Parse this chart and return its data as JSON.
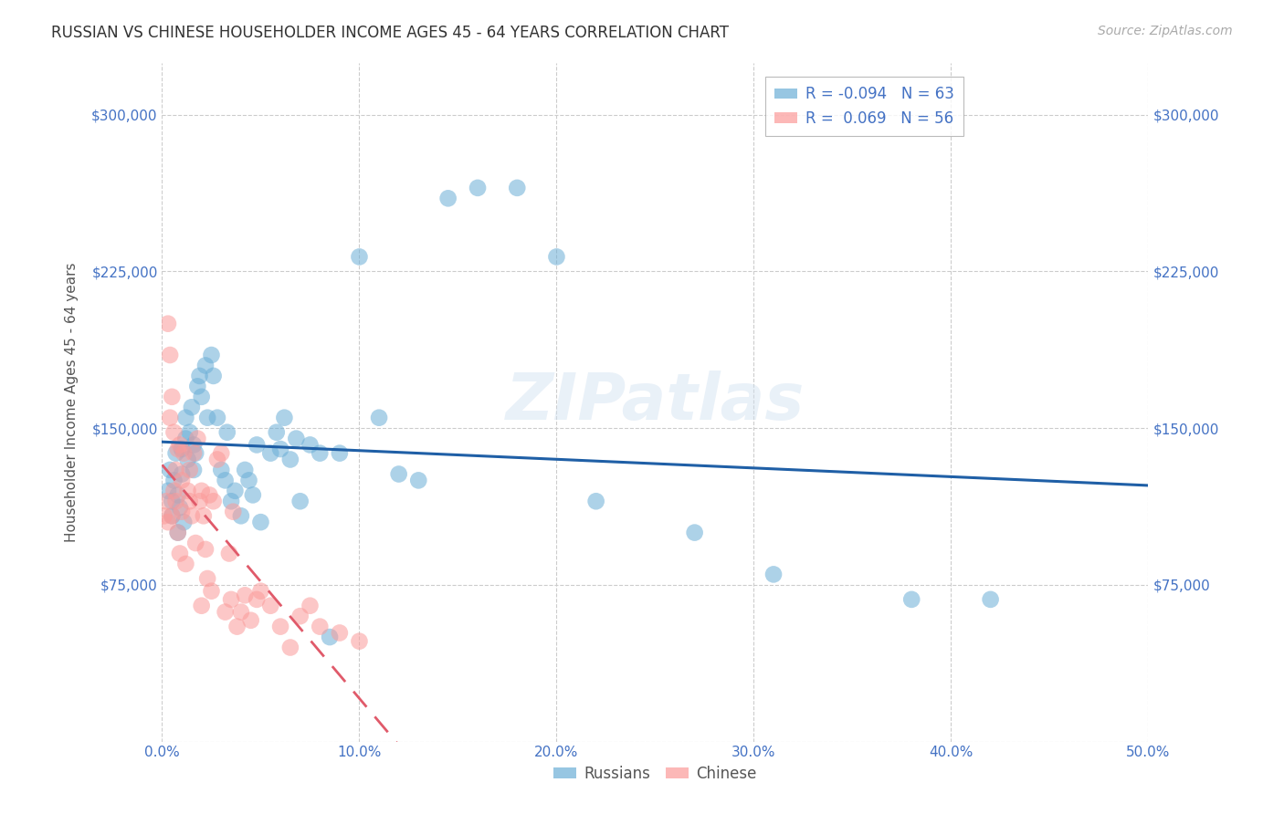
{
  "title": "RUSSIAN VS CHINESE HOUSEHOLDER INCOME AGES 45 - 64 YEARS CORRELATION CHART",
  "source": "Source: ZipAtlas.com",
  "xlabel_bottom": "",
  "ylabel": "Householder Income Ages 45 - 64 years",
  "xlim": [
    0.0,
    0.5
  ],
  "ylim": [
    0,
    325000
  ],
  "yticks": [
    0,
    75000,
    150000,
    225000,
    300000
  ],
  "ytick_labels": [
    "",
    "$75,000",
    "$150,000",
    "$225,000",
    "$300,000"
  ],
  "xtick_labels": [
    "0.0%",
    "10.0%",
    "20.0%",
    "30.0%",
    "40.0%",
    "50.0%"
  ],
  "xticks": [
    0.0,
    0.1,
    0.2,
    0.3,
    0.4,
    0.5
  ],
  "russian_color": "#6baed6",
  "chinese_color": "#fb9a99",
  "russian_R": -0.094,
  "russian_N": 63,
  "chinese_R": 0.069,
  "chinese_N": 56,
  "legend_label_russian": "R = -0.094   N = 63",
  "legend_label_chinese": "R =  0.069   N = 56",
  "watermark": "ZIPatlas",
  "background_color": "#ffffff",
  "grid_color": "#cccccc",
  "axis_label_color": "#4472c4",
  "title_color": "#333333",
  "russian_trend_color": "#1f5fa6",
  "chinese_trend_color": "#e05a6a",
  "russian_x": [
    0.003,
    0.004,
    0.005,
    0.005,
    0.006,
    0.007,
    0.008,
    0.008,
    0.009,
    0.01,
    0.01,
    0.011,
    0.012,
    0.012,
    0.013,
    0.014,
    0.015,
    0.016,
    0.016,
    0.017,
    0.018,
    0.019,
    0.02,
    0.022,
    0.023,
    0.025,
    0.026,
    0.028,
    0.03,
    0.032,
    0.033,
    0.035,
    0.037,
    0.04,
    0.042,
    0.044,
    0.046,
    0.048,
    0.05,
    0.055,
    0.058,
    0.06,
    0.062,
    0.065,
    0.068,
    0.07,
    0.075,
    0.08,
    0.085,
    0.09,
    0.1,
    0.11,
    0.12,
    0.13,
    0.145,
    0.16,
    0.18,
    0.2,
    0.22,
    0.27,
    0.31,
    0.38,
    0.42
  ],
  "russian_y": [
    120000,
    130000,
    108000,
    115000,
    125000,
    138000,
    100000,
    118000,
    112000,
    128000,
    140000,
    105000,
    145000,
    155000,
    135000,
    148000,
    160000,
    142000,
    130000,
    138000,
    170000,
    175000,
    165000,
    180000,
    155000,
    185000,
    175000,
    155000,
    130000,
    125000,
    148000,
    115000,
    120000,
    108000,
    130000,
    125000,
    118000,
    142000,
    105000,
    138000,
    148000,
    140000,
    155000,
    135000,
    145000,
    115000,
    142000,
    138000,
    50000,
    138000,
    232000,
    155000,
    128000,
    125000,
    260000,
    265000,
    265000,
    232000,
    115000,
    100000,
    80000,
    68000,
    68000
  ],
  "chinese_x": [
    0.001,
    0.002,
    0.003,
    0.003,
    0.004,
    0.004,
    0.005,
    0.005,
    0.006,
    0.006,
    0.007,
    0.007,
    0.008,
    0.008,
    0.009,
    0.009,
    0.01,
    0.01,
    0.011,
    0.012,
    0.013,
    0.014,
    0.014,
    0.015,
    0.016,
    0.017,
    0.018,
    0.019,
    0.02,
    0.02,
    0.021,
    0.022,
    0.023,
    0.024,
    0.025,
    0.026,
    0.028,
    0.03,
    0.032,
    0.034,
    0.035,
    0.036,
    0.038,
    0.04,
    0.042,
    0.045,
    0.048,
    0.05,
    0.055,
    0.06,
    0.065,
    0.07,
    0.075,
    0.08,
    0.09,
    0.1
  ],
  "chinese_y": [
    108000,
    115000,
    200000,
    105000,
    185000,
    155000,
    165000,
    108000,
    148000,
    120000,
    130000,
    115000,
    140000,
    100000,
    142000,
    90000,
    125000,
    110000,
    138000,
    85000,
    120000,
    115000,
    130000,
    108000,
    138000,
    95000,
    145000,
    115000,
    120000,
    65000,
    108000,
    92000,
    78000,
    118000,
    72000,
    115000,
    135000,
    138000,
    62000,
    90000,
    68000,
    110000,
    55000,
    62000,
    70000,
    58000,
    68000,
    72000,
    65000,
    55000,
    45000,
    60000,
    65000,
    55000,
    52000,
    48000
  ]
}
